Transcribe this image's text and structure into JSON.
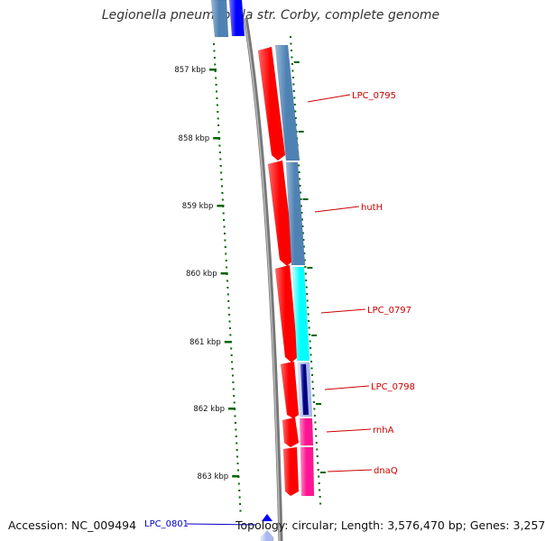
{
  "title": "Legionella pneumophila str. Corby, complete genome",
  "footer": {
    "accession": "Accession: NC_009494",
    "topology": "Topology: circular; Length: 3,576,470 bp; Genes: 3,257"
  },
  "colors": {
    "backbone": "#808080",
    "tick": "#006400",
    "label_red": "#cc0000",
    "label_blue": "#0000cc",
    "red_feature": "#ff0000",
    "steel_blue": "#4f82b4",
    "cyan": "#00ffff",
    "navy": "#000080",
    "pink": "#ff1493",
    "blue": "#0000ff",
    "light_blue": "#aab8f0"
  },
  "axis": {
    "unit": "kbp",
    "ticks": [
      "857 kbp",
      "858 kbp",
      "859 kbp",
      "860 kbp",
      "861 kbp",
      "862 kbp",
      "863 kbp"
    ]
  },
  "gene_labels": [
    {
      "name": "LPC_0795",
      "color": "#cc0000"
    },
    {
      "name": "hutH",
      "color": "#cc0000"
    },
    {
      "name": "LPC_0797",
      "color": "#cc0000"
    },
    {
      "name": "LPC_0798",
      "color": "#cc0000"
    },
    {
      "name": "rnhA",
      "color": "#cc0000"
    },
    {
      "name": "dnaQ",
      "color": "#cc0000"
    },
    {
      "name": "LPC_0801",
      "color": "#0000cc"
    }
  ]
}
